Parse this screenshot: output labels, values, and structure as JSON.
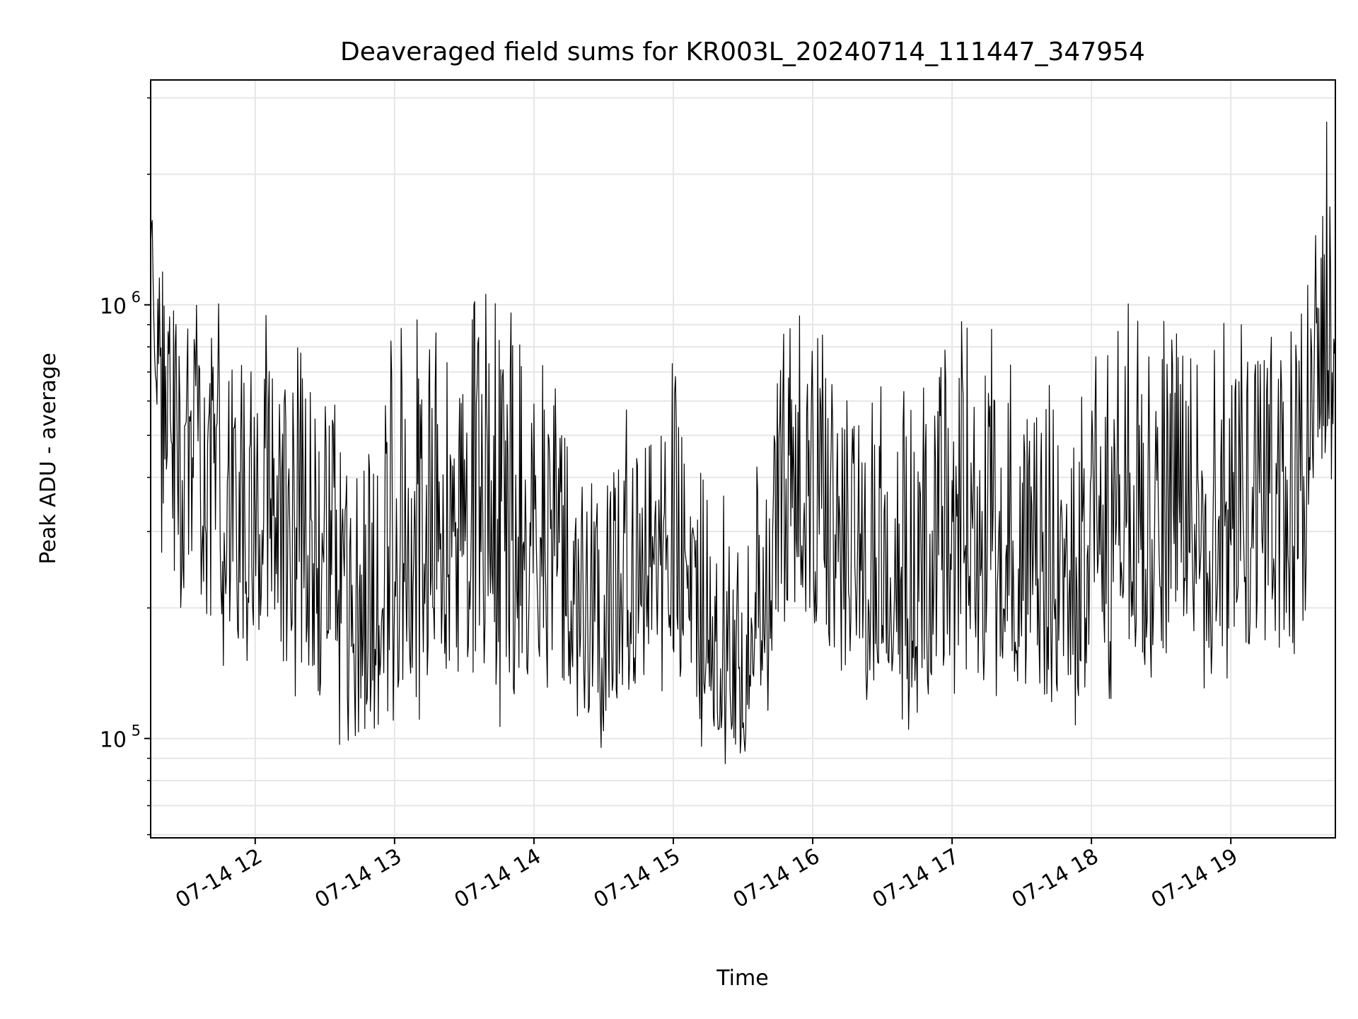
{
  "chart_data": {
    "type": "line",
    "title": "Deaveraged field sums for KR003L_20240714_111447_347954",
    "xlabel": "Time",
    "ylabel": "Peak ADU - average",
    "yscale": "log",
    "grid": true,
    "line_color": "#000000",
    "grid_color": "#e6e6e6",
    "xlim": [
      "2024-07-14 11:15",
      "2024-07-14 19:45"
    ],
    "ylim": [
      59000,
      3300000
    ],
    "x_ticks": [
      {
        "value": "2024-07-14 12:00",
        "label": "07-14 12"
      },
      {
        "value": "2024-07-14 13:00",
        "label": "07-14 13"
      },
      {
        "value": "2024-07-14 14:00",
        "label": "07-14 14"
      },
      {
        "value": "2024-07-14 15:00",
        "label": "07-14 15"
      },
      {
        "value": "2024-07-14 16:00",
        "label": "07-14 16"
      },
      {
        "value": "2024-07-14 17:00",
        "label": "07-14 17"
      },
      {
        "value": "2024-07-14 18:00",
        "label": "07-14 18"
      },
      {
        "value": "2024-07-14 19:00",
        "label": "07-14 19"
      }
    ],
    "y_ticks": [
      {
        "value": 100000,
        "base": "10",
        "exp": "5"
      },
      {
        "value": 1000000,
        "base": "10",
        "exp": "6"
      }
    ],
    "series": [
      {
        "x": [
          "2024-07-14 11:15",
          "2024-07-14 11:20",
          "2024-07-14 11:30",
          "2024-07-14 11:45",
          "2024-07-14 12:00",
          "2024-07-14 12:15",
          "2024-07-14 12:30",
          "2024-07-14 12:45",
          "2024-07-14 13:00",
          "2024-07-14 13:15",
          "2024-07-14 13:30",
          "2024-07-14 13:45",
          "2024-07-14 14:00",
          "2024-07-14 14:15",
          "2024-07-14 14:30",
          "2024-07-14 14:45",
          "2024-07-14 15:00",
          "2024-07-14 15:15",
          "2024-07-14 15:30",
          "2024-07-14 15:45",
          "2024-07-14 16:00",
          "2024-07-14 16:15",
          "2024-07-14 16:30",
          "2024-07-14 16:45",
          "2024-07-14 17:00",
          "2024-07-14 17:15",
          "2024-07-14 17:30",
          "2024-07-14 17:45",
          "2024-07-14 18:00",
          "2024-07-14 18:15",
          "2024-07-14 18:30",
          "2024-07-14 18:45",
          "2024-07-14 19:00",
          "2024-07-14 19:15",
          "2024-07-14 19:30",
          "2024-07-14 19:35",
          "2024-07-14 19:45"
        ],
        "median": [
          1200000,
          650000,
          450000,
          380000,
          320000,
          300000,
          250000,
          160000,
          220000,
          260000,
          300000,
          250000,
          280000,
          190000,
          160000,
          220000,
          260000,
          150000,
          140000,
          280000,
          320000,
          220000,
          190000,
          190000,
          280000,
          300000,
          220000,
          200000,
          240000,
          300000,
          280000,
          280000,
          320000,
          300000,
          280000,
          800000,
          900000
        ],
        "low": [
          900000,
          300000,
          200000,
          180000,
          160000,
          150000,
          120000,
          90000,
          120000,
          140000,
          150000,
          130000,
          140000,
          120000,
          110000,
          130000,
          150000,
          100000,
          95000,
          160000,
          180000,
          140000,
          130000,
          130000,
          150000,
          160000,
          130000,
          120000,
          130000,
          160000,
          150000,
          150000,
          170000,
          160000,
          160000,
          400000,
          500000
        ],
        "high": [
          1800000,
          1100000,
          850000,
          800000,
          750000,
          700000,
          600000,
          450000,
          700000,
          800000,
          900000,
          850000,
          800000,
          450000,
          380000,
          500000,
          600000,
          300000,
          280000,
          700000,
          800000,
          600000,
          500000,
          500000,
          750000,
          800000,
          600000,
          500000,
          600000,
          800000,
          780000,
          750000,
          850000,
          800000,
          700000,
          1600000,
          2400000
        ]
      }
    ]
  }
}
